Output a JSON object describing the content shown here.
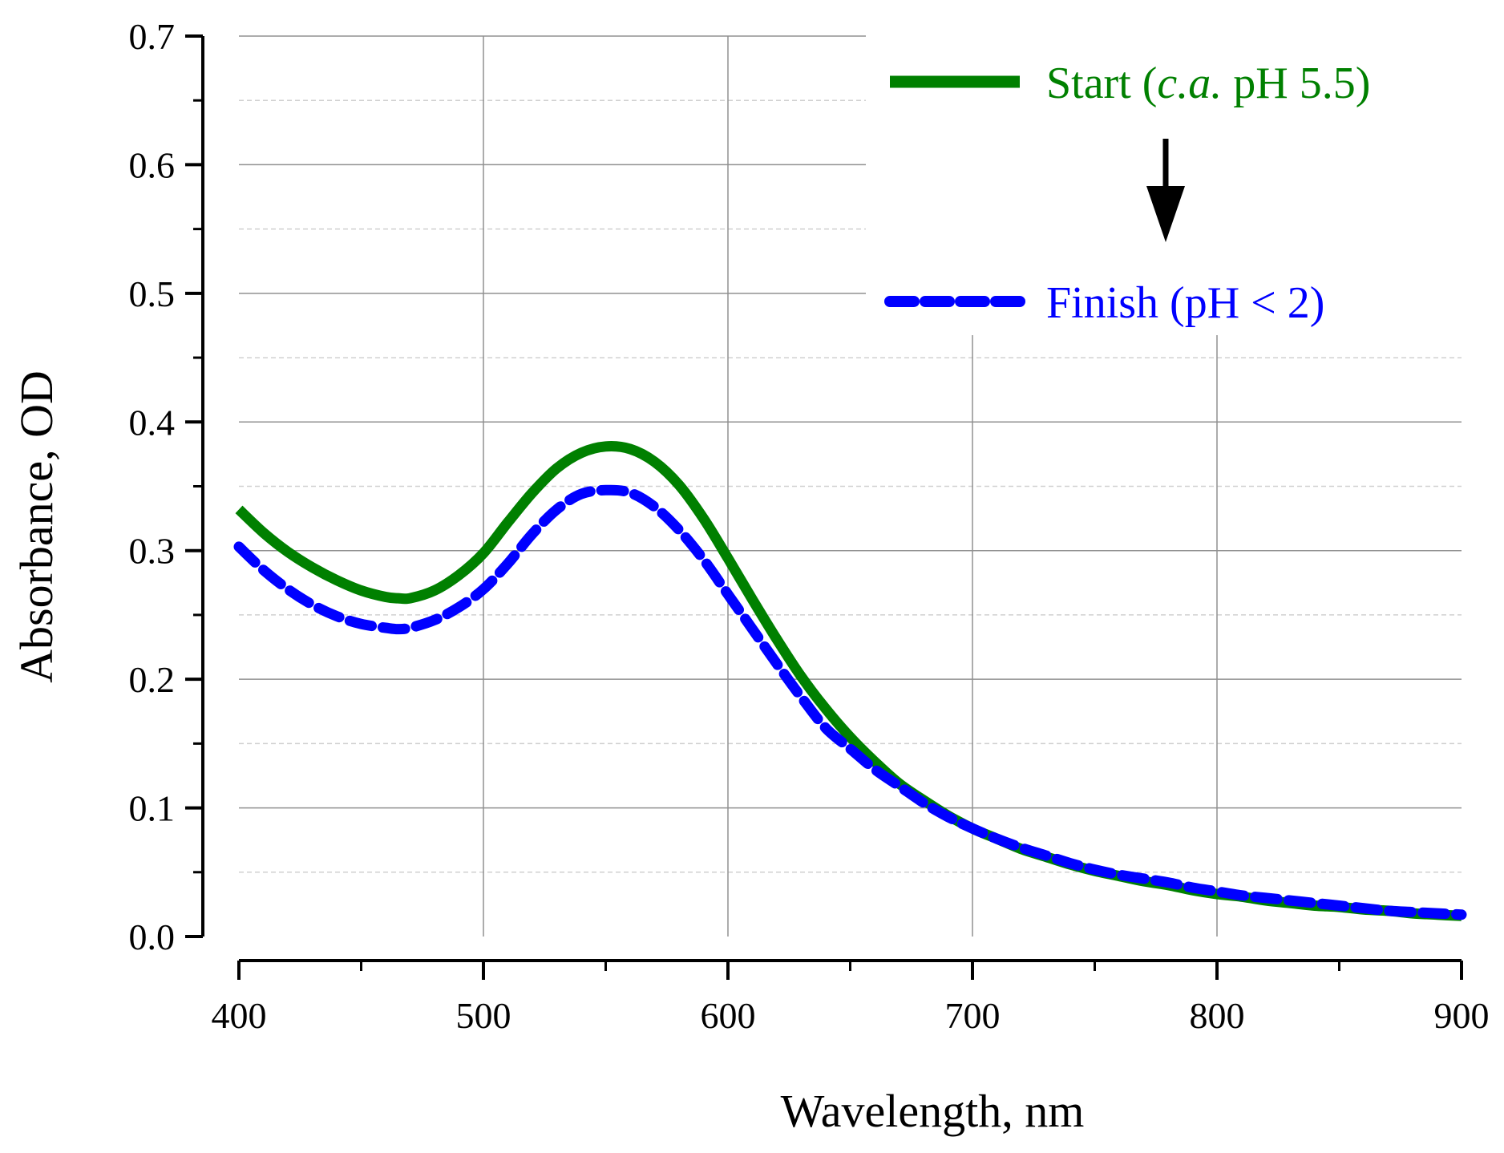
{
  "chart_data": {
    "type": "line",
    "xlabel": "Wavelength, nm",
    "ylabel": "Absorbance, OD",
    "xlim": [
      400,
      900
    ],
    "ylim": [
      0,
      0.7
    ],
    "x_ticks": [
      "400",
      "500",
      "600",
      "700",
      "800",
      "900"
    ],
    "y_ticks": [
      "0.0",
      "0.1",
      "0.2",
      "0.3",
      "0.4",
      "0.5",
      "0.6",
      "0.7"
    ],
    "grid": true,
    "legend_position": "top-right",
    "annotations": [
      {
        "type": "arrow",
        "direction": "down",
        "from": "Start",
        "to": "Finish"
      }
    ],
    "series": [
      {
        "name": "Start",
        "legend_parts": [
          "Start (",
          "c.a.",
          " pH 5.5)"
        ],
        "color": "#008000",
        "style": "solid",
        "x": [
          400,
          410,
          420,
          430,
          440,
          450,
          460,
          465,
          470,
          480,
          490,
          500,
          510,
          520,
          530,
          540,
          550,
          560,
          570,
          580,
          590,
          600,
          610,
          620,
          630,
          640,
          650,
          660,
          670,
          680,
          690,
          700,
          710,
          720,
          730,
          740,
          750,
          760,
          770,
          780,
          790,
          800,
          810,
          820,
          830,
          840,
          850,
          860,
          870,
          880,
          890,
          900
        ],
        "y": [
          0.332,
          0.314,
          0.299,
          0.287,
          0.277,
          0.269,
          0.264,
          0.263,
          0.263,
          0.269,
          0.281,
          0.298,
          0.322,
          0.345,
          0.364,
          0.376,
          0.381,
          0.379,
          0.369,
          0.351,
          0.325,
          0.294,
          0.262,
          0.231,
          0.202,
          0.177,
          0.155,
          0.136,
          0.119,
          0.106,
          0.094,
          0.084,
          0.076,
          0.068,
          0.062,
          0.056,
          0.051,
          0.047,
          0.043,
          0.04,
          0.036,
          0.033,
          0.031,
          0.028,
          0.026,
          0.024,
          0.023,
          0.021,
          0.02,
          0.018,
          0.017,
          0.016
        ]
      },
      {
        "name": "Finish",
        "legend_parts": [
          "Finish (pH < 2)"
        ],
        "color": "#0000ff",
        "style": "dashed",
        "x": [
          400,
          410,
          420,
          430,
          440,
          450,
          460,
          465,
          470,
          480,
          490,
          500,
          510,
          520,
          530,
          540,
          550,
          560,
          570,
          580,
          590,
          600,
          610,
          620,
          630,
          640,
          650,
          660,
          670,
          680,
          690,
          700,
          710,
          720,
          730,
          740,
          750,
          760,
          770,
          780,
          790,
          800,
          810,
          820,
          830,
          840,
          850,
          860,
          870,
          880,
          890,
          900
        ],
        "y": [
          0.303,
          0.285,
          0.27,
          0.258,
          0.249,
          0.243,
          0.24,
          0.239,
          0.24,
          0.246,
          0.256,
          0.27,
          0.29,
          0.313,
          0.332,
          0.344,
          0.347,
          0.345,
          0.334,
          0.316,
          0.293,
          0.266,
          0.239,
          0.212,
          0.186,
          0.162,
          0.146,
          0.13,
          0.117,
          0.104,
          0.093,
          0.084,
          0.076,
          0.069,
          0.063,
          0.057,
          0.052,
          0.048,
          0.045,
          0.042,
          0.038,
          0.035,
          0.032,
          0.03,
          0.028,
          0.026,
          0.024,
          0.022,
          0.02,
          0.019,
          0.018,
          0.017
        ]
      }
    ]
  }
}
